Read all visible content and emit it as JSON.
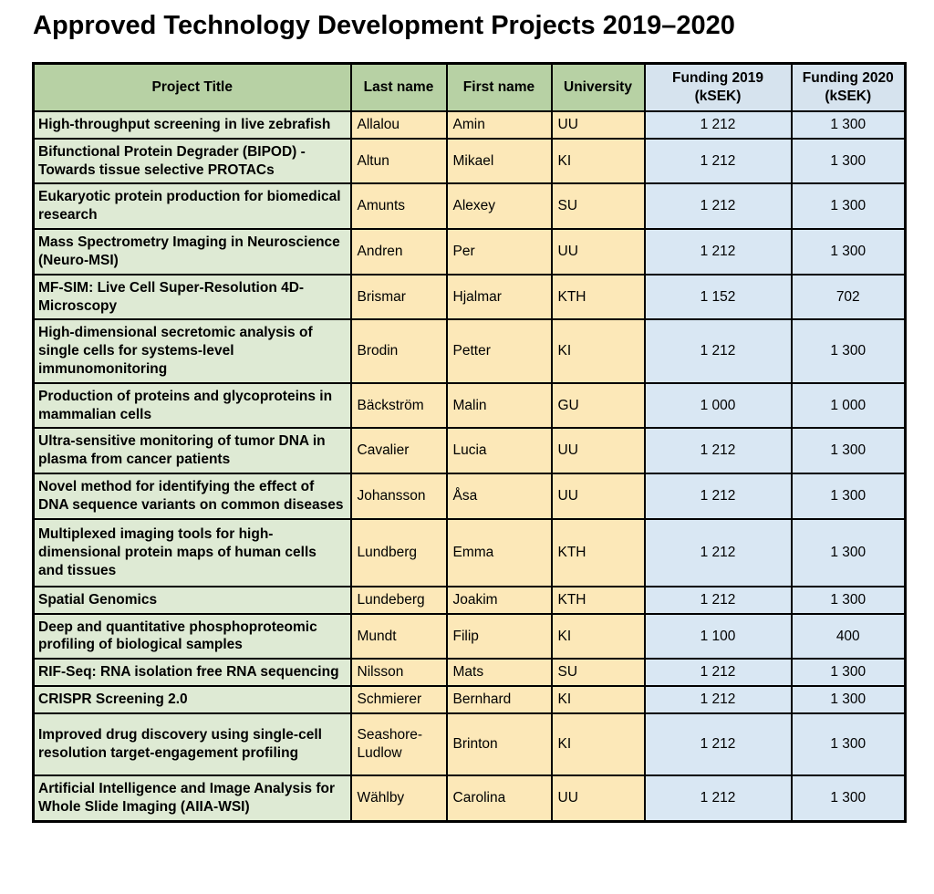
{
  "page": {
    "title": "Approved Technology Development Projects 2019–2020"
  },
  "colors": {
    "header_green": "#b7d1a4",
    "header_blue": "#d6e3ee",
    "cell_green": "#deead4",
    "cell_cream": "#fce8b8",
    "cell_blue": "#d9e7f3",
    "border": "#000000",
    "text": "#000000"
  },
  "table": {
    "columns": [
      {
        "label": "Project Title",
        "sublabel": ""
      },
      {
        "label": "Last name",
        "sublabel": ""
      },
      {
        "label": "First name",
        "sublabel": ""
      },
      {
        "label": "University",
        "sublabel": ""
      },
      {
        "label": "Funding 2019",
        "sublabel": "(kSEK)"
      },
      {
        "label": "Funding 2020",
        "sublabel": "(kSEK)"
      }
    ],
    "rows": [
      {
        "title": "High-throughput screening in live zebrafish",
        "last_name": "Allalou",
        "first_name": "Amin",
        "university": "UU",
        "funding_2019": "1 212",
        "funding_2020": "1 300"
      },
      {
        "title": "Bifunctional Protein Degrader (BIPOD) - Towards tissue selective PROTACs",
        "last_name": "Altun",
        "first_name": "Mikael",
        "university": "KI",
        "funding_2019": "1 212",
        "funding_2020": "1 300"
      },
      {
        "title": "Eukaryotic protein production for biomedical research",
        "last_name": "Amunts",
        "first_name": "Alexey",
        "university": "SU",
        "funding_2019": "1 212",
        "funding_2020": "1 300"
      },
      {
        "title": "Mass Spectrometry Imaging in Neuroscience (Neuro-MSI)",
        "last_name": "Andren",
        "first_name": "Per",
        "university": "UU",
        "funding_2019": "1 212",
        "funding_2020": "1 300"
      },
      {
        "title": "MF-SIM: Live Cell Super-Resolution 4D-Microscopy",
        "last_name": "Brismar",
        "first_name": "Hjalmar",
        "university": "KTH",
        "funding_2019": "1 152",
        "funding_2020": "702"
      },
      {
        "title": "High-dimensional secretomic analysis of single cells for systems-level immunomonitoring",
        "last_name": "Brodin",
        "first_name": "Petter",
        "university": "KI",
        "funding_2019": "1 212",
        "funding_2020": "1 300"
      },
      {
        "title": "Production of proteins and glycoproteins in mammalian cells",
        "last_name": "Bäckström",
        "first_name": "Malin",
        "university": "GU",
        "funding_2019": "1 000",
        "funding_2020": "1 000"
      },
      {
        "title": "Ultra-sensitive monitoring of tumor DNA in plasma from cancer patients",
        "last_name": "Cavalier",
        "first_name": "Lucia",
        "university": "UU",
        "funding_2019": "1 212",
        "funding_2020": "1 300"
      },
      {
        "title": "Novel method for identifying the effect of DNA sequence variants on common diseases",
        "last_name": "Johansson",
        "first_name": "Åsa",
        "university": "UU",
        "funding_2019": "1 212",
        "funding_2020": "1 300"
      },
      {
        "title": "Multiplexed imaging tools for high-dimensional protein maps of human cells and tissues",
        "last_name": "Lundberg",
        "first_name": "Emma",
        "university": "KTH",
        "funding_2019": "1 212",
        "funding_2020": "1 300"
      },
      {
        "title": "Spatial Genomics",
        "last_name": "Lundeberg",
        "first_name": "Joakim",
        "university": "KTH",
        "funding_2019": "1 212",
        "funding_2020": "1 300"
      },
      {
        "title": "Deep and quantitative phosphoproteomic profiling of biological samples",
        "last_name": "Mundt",
        "first_name": "Filip",
        "university": "KI",
        "funding_2019": "1 100",
        "funding_2020": "400"
      },
      {
        "title": "RIF-Seq: RNA isolation free RNA sequencing",
        "last_name": "Nilsson",
        "first_name": "Mats",
        "university": "SU",
        "funding_2019": "1 212",
        "funding_2020": "1 300"
      },
      {
        "title": "CRISPR Screening 2.0",
        "last_name": "Schmierer",
        "first_name": "Bernhard",
        "university": "KI",
        "funding_2019": "1 212",
        "funding_2020": "1 300"
      },
      {
        "title": "Improved drug discovery using single-cell resolution target-engagement profiling",
        "last_name": "Seashore-Ludlow",
        "first_name": "Brinton",
        "university": "KI",
        "funding_2019": "1 212",
        "funding_2020": "1 300"
      },
      {
        "title": "Artificial Intelligence and Image Analysis for Whole Slide Imaging (AIIA-WSI)",
        "last_name": "Wählby",
        "first_name": "Carolina",
        "university": "UU",
        "funding_2019": "1 212",
        "funding_2020": "1 300"
      }
    ]
  }
}
